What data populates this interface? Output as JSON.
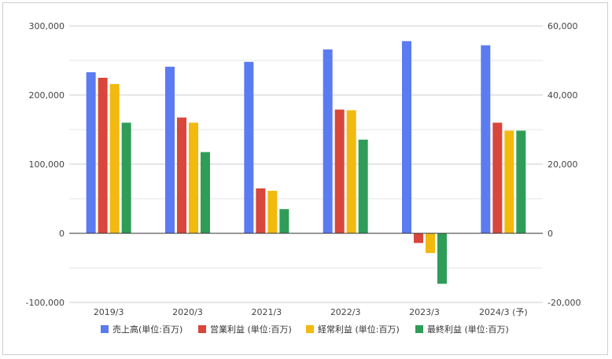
{
  "chart_data": {
    "type": "bar",
    "categories": [
      "2019/3",
      "2020/3",
      "2021/3",
      "2022/3",
      "2023/3",
      "2024/3 (予)"
    ],
    "series": [
      {
        "name": "売上高(単位:百万)",
        "axis": "left",
        "color": "#5b7bf0",
        "values": [
          233000,
          241000,
          248000,
          266000,
          278000,
          272000
        ]
      },
      {
        "name": "営業利益 (単位:百万)",
        "axis": "right",
        "color": "#d9463b",
        "values": [
          45000,
          33500,
          13000,
          35800,
          -2800,
          32000
        ]
      },
      {
        "name": "経常利益 (単位:百万)",
        "axis": "right",
        "color": "#f2b90f",
        "values": [
          43200,
          32000,
          12300,
          35600,
          -5700,
          29700
        ]
      },
      {
        "name": "最終利益 (単位:百万)",
        "axis": "right",
        "color": "#2f9d58",
        "values": [
          32000,
          23500,
          7000,
          27100,
          -14600,
          29700
        ]
      }
    ],
    "left_axis": {
      "min": -100000,
      "max": 300000,
      "ticks": [
        300000,
        200000,
        100000,
        0,
        -100000
      ],
      "tick_labels": [
        "300,000",
        "200,000",
        "100,000",
        "0",
        "-100,000"
      ]
    },
    "right_axis": {
      "min": -20000,
      "max": 60000,
      "ticks": [
        60000,
        40000,
        20000,
        0,
        -20000
      ],
      "tick_labels": [
        "60,000",
        "40,000",
        "20,000",
        "0",
        "-20,000"
      ]
    },
    "grid": true,
    "legend_position": "bottom"
  }
}
